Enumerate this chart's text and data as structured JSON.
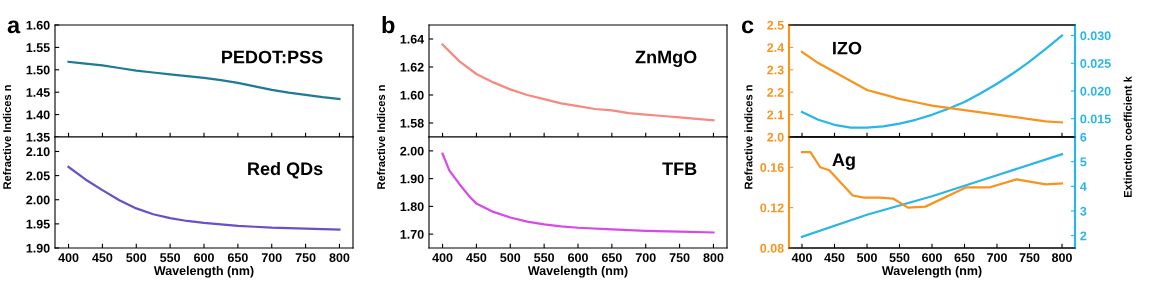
{
  "chart_data": [
    {
      "type": "line",
      "title": "a",
      "ylabel": "Refractive Indices n",
      "xlim": [
        380,
        820
      ],
      "xticks": [
        400,
        450,
        500,
        550,
        600,
        650,
        700,
        750,
        800
      ],
      "ylim": [
        1.35,
        1.6
      ],
      "yticks": [
        1.35,
        {
          "value": 1.4,
          "label": "1.40"
        },
        1.45,
        {
          "value": 1.5,
          "label": "1.50"
        },
        1.55,
        {
          "value": 1.6,
          "label": "1.60"
        }
      ],
      "tick_labels": "y",
      "grid": false,
      "legend": false,
      "series": [
        {
          "name": "PEDOT:PSS",
          "color": "#1f7a99",
          "x": [
            400,
            425,
            450,
            475,
            500,
            525,
            550,
            575,
            600,
            625,
            650,
            675,
            700,
            725,
            750,
            775,
            800
          ],
          "values": [
            1.518,
            1.514,
            1.51,
            1.504,
            1.498,
            1.494,
            1.49,
            1.486,
            1.482,
            1.477,
            1.471,
            1.463,
            1.455,
            1.449,
            1.444,
            1.439,
            1.435
          ]
        }
      ]
    },
    {
      "type": "line",
      "xlabel": "Wavelength (nm)",
      "xlim": [
        380,
        820
      ],
      "xticks": [
        400,
        450,
        500,
        550,
        600,
        650,
        700,
        750,
        800
      ],
      "ylim": [
        1.9,
        2.13
      ],
      "yticks": [
        {
          "value": 1.9,
          "label": "1.90"
        },
        1.95,
        {
          "value": 2.0,
          "label": "2.00"
        },
        2.05,
        {
          "value": 2.1,
          "label": "2.10"
        }
      ],
      "grid": false,
      "legend": false,
      "series": [
        {
          "name": "Red QDs",
          "color": "#6a4fc9",
          "x": [
            400,
            425,
            450,
            475,
            500,
            525,
            550,
            575,
            600,
            625,
            650,
            675,
            700,
            725,
            750,
            775,
            800
          ],
          "values": [
            2.068,
            2.042,
            2.02,
            1.999,
            1.982,
            1.97,
            1.962,
            1.956,
            1.952,
            1.949,
            1.946,
            1.944,
            1.942,
            1.941,
            1.94,
            1.939,
            1.938
          ]
        }
      ]
    },
    {
      "type": "line",
      "title": "b",
      "ylabel": "Refractive Indices n",
      "xlim": [
        380,
        820
      ],
      "xticks": [
        400,
        450,
        500,
        550,
        600,
        650,
        700,
        750,
        800
      ],
      "ylim": [
        1.57,
        1.65
      ],
      "yticks": [
        1.58,
        {
          "value": 1.6,
          "label": "1.60"
        },
        1.62,
        1.64
      ],
      "tick_labels": "y",
      "grid": false,
      "legend": false,
      "series": [
        {
          "name": "ZnMgO",
          "color": "#f48a80",
          "x": [
            400,
            425,
            450,
            475,
            500,
            525,
            550,
            575,
            600,
            625,
            650,
            675,
            700,
            725,
            750,
            775,
            800
          ],
          "values": [
            1.636,
            1.624,
            1.615,
            1.609,
            1.604,
            1.6,
            1.597,
            1.594,
            1.592,
            1.59,
            1.589,
            1.587,
            1.586,
            1.585,
            1.584,
            1.583,
            1.582
          ]
        }
      ]
    },
    {
      "type": "line",
      "xlabel": "Wavelength (nm)",
      "xlim": [
        380,
        820
      ],
      "xticks": [
        400,
        450,
        500,
        550,
        600,
        650,
        700,
        750,
        800
      ],
      "ylim": [
        1.65,
        2.05
      ],
      "yticks": [
        {
          "value": 1.7,
          "label": "1.70"
        },
        {
          "value": 1.8,
          "label": "1.80"
        },
        {
          "value": 1.9,
          "label": "1.90"
        },
        {
          "value": 2.0,
          "label": "2.00"
        }
      ],
      "grid": false,
      "legend": false,
      "series": [
        {
          "name": "TFB",
          "color": "#d64ae8",
          "x": [
            400,
            410,
            425,
            440,
            450,
            475,
            500,
            525,
            550,
            575,
            600,
            650,
            700,
            750,
            800
          ],
          "values": [
            1.99,
            1.93,
            1.88,
            1.835,
            1.81,
            1.78,
            1.76,
            1.745,
            1.735,
            1.728,
            1.723,
            1.717,
            1.712,
            1.709,
            1.706
          ]
        }
      ]
    },
    {
      "type": "line",
      "title": "c",
      "ylabel": "Refractive indices n",
      "y2label": "Extinction coefficient k",
      "xlim": [
        380,
        820
      ],
      "xticks": [
        400,
        450,
        500,
        550,
        600,
        650,
        700,
        750,
        800
      ],
      "ylim": [
        2.0,
        2.5
      ],
      "yticks": [
        {
          "value": 2.0,
          "label": "2.0"
        },
        2.1,
        2.2,
        2.3,
        2.4,
        2.5
      ],
      "y2lim": [
        0.0117,
        0.0319
      ],
      "y2ticks": [
        0.015,
        {
          "value": 0.02,
          "label": "0.020"
        },
        0.025,
        {
          "value": 0.03,
          "label": "0.030"
        }
      ],
      "tick_labels": "y",
      "grid": false,
      "legend": false,
      "series": [
        {
          "name": "IZO",
          "color": "#f7941d",
          "x": [
            400,
            425,
            450,
            475,
            500,
            525,
            550,
            575,
            600,
            625,
            650,
            675,
            700,
            725,
            750,
            775,
            800
          ],
          "values": [
            2.38,
            2.33,
            2.29,
            2.25,
            2.21,
            2.19,
            2.17,
            2.155,
            2.14,
            2.13,
            2.12,
            2.11,
            2.1,
            2.09,
            2.08,
            2.07,
            2.065
          ]
        },
        {
          "color": "#29b6e6",
          "axis": "y2",
          "x": [
            400,
            425,
            450,
            475,
            500,
            525,
            550,
            575,
            600,
            625,
            650,
            675,
            700,
            725,
            750,
            775,
            800
          ],
          "values": [
            0.0162,
            0.0148,
            0.0139,
            0.0134,
            0.0134,
            0.0136,
            0.0141,
            0.0148,
            0.0157,
            0.0168,
            0.018,
            0.0196,
            0.0213,
            0.0232,
            0.0253,
            0.0276,
            0.03
          ]
        }
      ]
    },
    {
      "type": "line",
      "xlabel": "Wavelength (nm)",
      "xlim": [
        380,
        820
      ],
      "xticks": [
        400,
        450,
        500,
        550,
        600,
        650,
        700,
        750,
        800
      ],
      "ylim": [
        0.08,
        0.19
      ],
      "yticks": [
        {
          "value": 0.08,
          "label": "0.08"
        },
        {
          "value": 0.12,
          "label": "0.12"
        },
        {
          "value": 0.16,
          "label": "0.16"
        }
      ],
      "y2lim": [
        1.5,
        6
      ],
      "y2ticks": [
        2,
        3,
        4,
        5,
        6
      ],
      "grid": false,
      "legend": false,
      "series": [
        {
          "name": "Ag",
          "color": "#f7941d",
          "x": [
            400,
            413,
            428,
            442,
            478,
            495,
            520,
            540,
            563,
            590,
            652,
            688,
            730,
            775,
            800
          ],
          "values": [
            0.175,
            0.175,
            0.16,
            0.157,
            0.132,
            0.13,
            0.13,
            0.129,
            0.12,
            0.121,
            0.14,
            0.14,
            0.148,
            0.143,
            0.144
          ]
        },
        {
          "color": "#29b6e6",
          "axis": "y2",
          "x": [
            400,
            500,
            600,
            700,
            800
          ],
          "values": [
            1.95,
            2.85,
            3.6,
            4.45,
            5.3
          ]
        }
      ]
    }
  ]
}
